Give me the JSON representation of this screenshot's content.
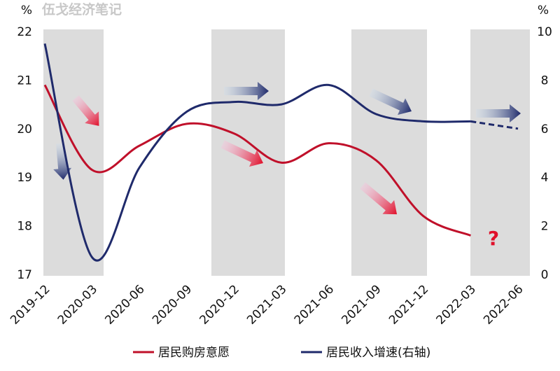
{
  "chart_data": {
    "type": "line",
    "watermark": "伍戈经济笔记",
    "y_unit": "%",
    "y2_unit": "%",
    "categories": [
      "2019-12",
      "2020-03",
      "2020-06",
      "2020-09",
      "2020-12",
      "2021-03",
      "2021-06",
      "2021-09",
      "2021-12",
      "2022-03",
      "2022-06"
    ],
    "series": [
      {
        "name": "居民购房意愿",
        "color": "#c0102a",
        "values": [
          20.9,
          19.15,
          19.65,
          20.1,
          19.9,
          19.3,
          19.7,
          19.35,
          18.2,
          17.8,
          null
        ]
      },
      {
        "name": "居民收入增速(右轴)",
        "color": "#1f2a6b",
        "axis": "y2",
        "values": [
          9.5,
          0.7,
          4.4,
          6.7,
          7.1,
          7.0,
          7.8,
          6.6,
          6.3,
          6.3,
          null
        ],
        "projected": [
          null,
          null,
          null,
          null,
          null,
          null,
          null,
          null,
          null,
          6.3,
          6.0
        ]
      }
    ],
    "ylim": [
      17,
      22
    ],
    "yticks": [
      17,
      18,
      19,
      20,
      21,
      22
    ],
    "y2lim": [
      0,
      10
    ],
    "y2ticks": [
      0,
      2,
      4,
      6,
      8,
      10
    ],
    "annotation": "?"
  }
}
